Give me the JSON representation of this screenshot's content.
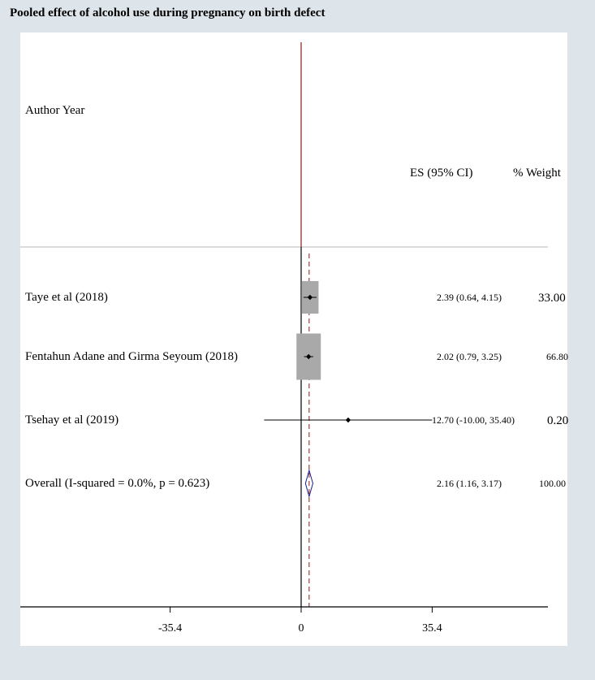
{
  "title": "Pooled effect of alcohol use during pregnancy on birth defect",
  "header": {
    "author_year": "Author Year",
    "es_ci": "ES (95% CI)",
    "weight": "% Weight"
  },
  "colors": {
    "panel_background": "#dde5ea",
    "plot_background": "#ffffff",
    "null_line": "#8b1a1a",
    "pooled_line": "#8b1a1a",
    "weight_box": "#a9a9a9",
    "diamond": "#1a1a8b"
  },
  "chart_data": {
    "type": "forest",
    "title": "Pooled effect of alcohol use during pregnancy on birth defect",
    "xlim": [
      -71.4,
      71.4
    ],
    "xticks": [
      -35.4,
      0,
      35.4
    ],
    "xtick_labels": [
      "-35.4",
      "0",
      "35.4"
    ],
    "null_value": 0,
    "studies": [
      {
        "label": "Taye et al (2018)",
        "es": 2.39,
        "lower": 0.64,
        "upper": 4.15,
        "ci_text": "2.39 (0.64, 4.15)",
        "weight": 33.0,
        "weight_text": "33.00"
      },
      {
        "label": "Fentahun Adane and Girma Seyoum (2018)",
        "es": 2.02,
        "lower": 0.79,
        "upper": 3.25,
        "ci_text": "2.02 (0.79, 3.25)",
        "weight": 66.8,
        "weight_text": "66.80"
      },
      {
        "label": "Tsehay et al (2019)",
        "es": 12.7,
        "lower": -10.0,
        "upper": 35.4,
        "ci_text": "12.70 (-10.00, 35.40)",
        "weight": 0.2,
        "weight_text": "0.20"
      }
    ],
    "overall": {
      "label": "Overall (I-squared = 0.0%, p = 0.623)",
      "es": 2.16,
      "lower": 1.16,
      "upper": 3.17,
      "ci_text": "2.16 (1.16, 3.17)",
      "weight": 100.0,
      "weight_text": "100.00"
    }
  }
}
